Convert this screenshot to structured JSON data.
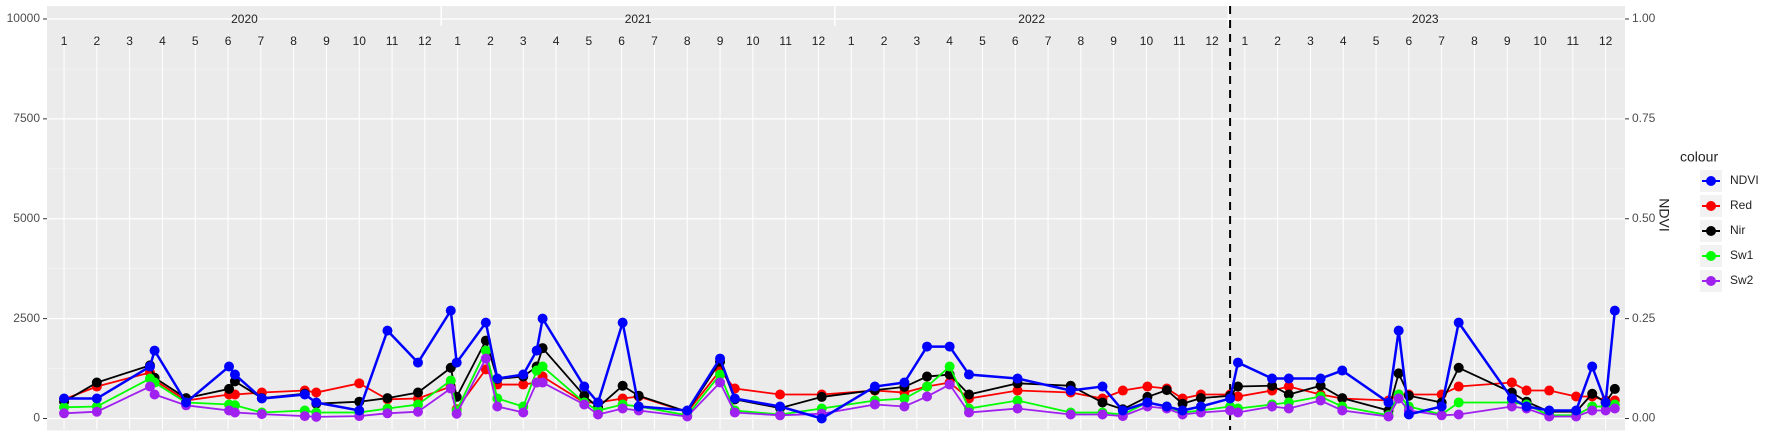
{
  "chart_data": {
    "type": "line",
    "y_title": "NDVI",
    "legend_title": "colour",
    "years": [
      2020,
      2021,
      2022,
      2023
    ],
    "months": [
      1,
      2,
      3,
      4,
      5,
      6,
      7,
      8,
      9,
      10,
      11,
      12
    ],
    "xlim": [
      0.48,
      48.59
    ],
    "vline": 36.55,
    "ylim": [
      -288,
      10325
    ],
    "yticks": [
      0,
      2500,
      5000,
      7500,
      10000
    ],
    "y2lim": [
      -0.0288,
      1.0325
    ],
    "y2ticks": [
      {
        "value": 0,
        "label": "0.00"
      },
      {
        "value": 0.25,
        "label": "0.25"
      },
      {
        "value": 0.5,
        "label": "0.50"
      },
      {
        "value": 0.75,
        "label": "0.75"
      },
      {
        "value": 1,
        "label": "1.00"
      }
    ],
    "grid": true,
    "legend": "right",
    "x": [
      1.0,
      2.0,
      3.62,
      3.76,
      4.72,
      6.03,
      6.21,
      7.03,
      8.34,
      8.69,
      10.0,
      10.86,
      11.79,
      12.79,
      12.97,
      13.86,
      14.21,
      15.0,
      15.41,
      15.59,
      16.86,
      17.28,
      18.03,
      18.52,
      20.0,
      21.0,
      21.45,
      22.83,
      24.1,
      25.72,
      26.62,
      27.31,
      28.0,
      28.59,
      30.07,
      31.69,
      32.66,
      33.28,
      34.03,
      34.62,
      35.1,
      35.66,
      36.55,
      36.79,
      37.83,
      38.34,
      39.31,
      39.97,
      41.38,
      41.69,
      42.0,
      43.0,
      43.52,
      45.14,
      45.59,
      46.28,
      47.1,
      47.59,
      48.0,
      48.28
    ],
    "series": [
      {
        "name": "NDVI",
        "color": "#0000FF",
        "axis": "y2",
        "values": [
          0.05,
          0.05,
          0.13,
          0.17,
          0.04,
          0.13,
          0.11,
          0.05,
          0.06,
          0.04,
          0.02,
          0.22,
          0.14,
          0.27,
          0.14,
          0.24,
          0.1,
          0.11,
          0.17,
          0.25,
          0.08,
          0.04,
          0.24,
          0.03,
          0.02,
          0.15,
          0.05,
          0.03,
          0.0,
          0.08,
          0.09,
          0.18,
          0.18,
          0.11,
          0.1,
          0.07,
          0.08,
          0.02,
          0.04,
          0.03,
          0.02,
          0.03,
          0.05,
          0.14,
          0.1,
          0.1,
          0.1,
          0.12,
          0.04,
          0.22,
          0.01,
          0.03,
          0.24,
          0.05,
          0.03,
          0.02,
          0.02,
          0.13,
          0.04,
          0.27
        ]
      },
      {
        "name": "Red",
        "color": "#FF0000",
        "values": [
          480,
          800,
          1150,
          960,
          450,
          600,
          600,
          650,
          700,
          650,
          880,
          480,
          500,
          800,
          230,
          1230,
          850,
          850,
          900,
          1050,
          400,
          400,
          500,
          550,
          160,
          1200,
          750,
          600,
          600,
          700,
          650,
          800,
          900,
          500,
          700,
          650,
          500,
          700,
          800,
          750,
          500,
          600,
          600,
          550,
          700,
          800,
          600,
          500,
          450,
          600,
          600,
          600,
          800,
          900,
          700,
          700,
          550,
          550,
          450,
          450
        ]
      },
      {
        "name": "Nir",
        "color": "#000000",
        "values": [
          420,
          900,
          1330,
          1020,
          510,
          740,
          930,
          510,
          620,
          370,
          420,
          510,
          650,
          1270,
          540,
          1950,
          990,
          1050,
          1300,
          1760,
          570,
          280,
          820,
          570,
          170,
          1420,
          480,
          260,
          540,
          710,
          790,
          1050,
          1100,
          600,
          880,
          820,
          400,
          230,
          540,
          710,
          370,
          510,
          570,
          800,
          820,
          600,
          820,
          510,
          200,
          1130,
          570,
          400,
          1270,
          650,
          420,
          170,
          170,
          620,
          400,
          740
        ]
      },
      {
        "name": "Sw1",
        "color": "#00FF00",
        "values": [
          280,
          300,
          1000,
          900,
          400,
          350,
          330,
          150,
          200,
          150,
          150,
          250,
          350,
          950,
          200,
          1700,
          500,
          300,
          1200,
          1300,
          400,
          200,
          350,
          300,
          80,
          1100,
          200,
          100,
          250,
          450,
          500,
          800,
          1300,
          250,
          450,
          150,
          150,
          100,
          400,
          300,
          150,
          200,
          300,
          250,
          350,
          400,
          550,
          300,
          80,
          600,
          300,
          100,
          400,
          400,
          350,
          80,
          80,
          300,
          300,
          350
        ]
      },
      {
        "name": "Sw2",
        "color": "#A020F0",
        "values": [
          130,
          170,
          800,
          600,
          330,
          200,
          150,
          110,
          60,
          40,
          60,
          130,
          170,
          750,
          120,
          1500,
          300,
          150,
          900,
          900,
          350,
          100,
          250,
          200,
          50,
          900,
          150,
          80,
          120,
          350,
          300,
          550,
          850,
          150,
          250,
          100,
          100,
          60,
          300,
          250,
          100,
          150,
          200,
          150,
          300,
          250,
          450,
          200,
          50,
          500,
          200,
          80,
          100,
          300,
          250,
          50,
          50,
          200,
          200,
          250
        ]
      }
    ]
  }
}
